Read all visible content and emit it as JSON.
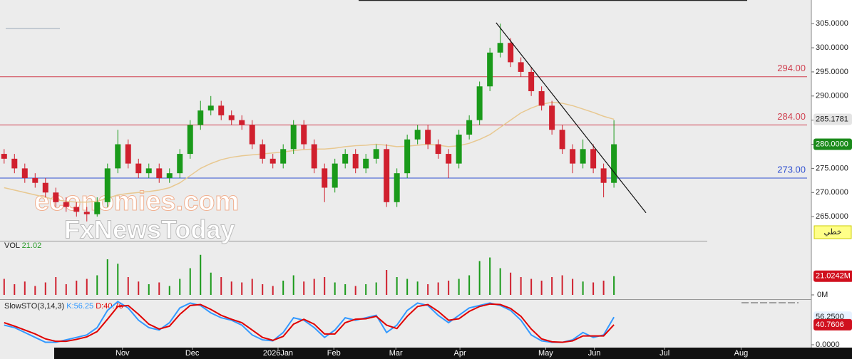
{
  "chart_data": {
    "type": "candlestick",
    "up_color": "#1a9a1a",
    "down_color": "#d0202e",
    "candles": [
      [
        278,
        279,
        276,
        277
      ],
      [
        277,
        278,
        274,
        275
      ],
      [
        275,
        276,
        272,
        273
      ],
      [
        273,
        274,
        271,
        272
      ],
      [
        272,
        273,
        269,
        270
      ],
      [
        270,
        271,
        267,
        268
      ],
      [
        268,
        269,
        266,
        267
      ],
      [
        267,
        268,
        265,
        266
      ],
      [
        266,
        267,
        264,
        265.5
      ],
      [
        265.5,
        269,
        265,
        268
      ],
      [
        268,
        276,
        267,
        275
      ],
      [
        275,
        283,
        274,
        280
      ],
      [
        280,
        281,
        275,
        276
      ],
      [
        276,
        277,
        273,
        274
      ],
      [
        274,
        276,
        273,
        275
      ],
      [
        275,
        276,
        272,
        273
      ],
      [
        273,
        275,
        272,
        274
      ],
      [
        274,
        279,
        273,
        278
      ],
      [
        278,
        285,
        277,
        284
      ],
      [
        284,
        289,
        283,
        287
      ],
      [
        287,
        290,
        286,
        288
      ],
      [
        288,
        289,
        285,
        286
      ],
      [
        286,
        287,
        284,
        285
      ],
      [
        285,
        286,
        283,
        284
      ],
      [
        284,
        285,
        279,
        280
      ],
      [
        280,
        281,
        276,
        277
      ],
      [
        277,
        278,
        275,
        276
      ],
      [
        276,
        280,
        275,
        279
      ],
      [
        279,
        285,
        278,
        284
      ],
      [
        284,
        285,
        279,
        280
      ],
      [
        280,
        281,
        274,
        275
      ],
      [
        275,
        276,
        268,
        271
      ],
      [
        271,
        277,
        270,
        276
      ],
      [
        276,
        279,
        275,
        278
      ],
      [
        278,
        279,
        274,
        275
      ],
      [
        275,
        278,
        274,
        277
      ],
      [
        277,
        280,
        276,
        279
      ],
      [
        279,
        280,
        267,
        268
      ],
      [
        268,
        275,
        267,
        274
      ],
      [
        274,
        282,
        273,
        281
      ],
      [
        281,
        284,
        280,
        283
      ],
      [
        283,
        284,
        279,
        280
      ],
      [
        280,
        281,
        277,
        278
      ],
      [
        278,
        279,
        273,
        276
      ],
      [
        276,
        283,
        275,
        282
      ],
      [
        282,
        286,
        281,
        285
      ],
      [
        285,
        293,
        284,
        292
      ],
      [
        292,
        300,
        291,
        299
      ],
      [
        299,
        305,
        298,
        301
      ],
      [
        301,
        302,
        296,
        297
      ],
      [
        297,
        298,
        294,
        295
      ],
      [
        295,
        296,
        290,
        291
      ],
      [
        291,
        292,
        287,
        288
      ],
      [
        288,
        289,
        282,
        283
      ],
      [
        283,
        284,
        278,
        279
      ],
      [
        279,
        280,
        274,
        276
      ],
      [
        276,
        281,
        275,
        279
      ],
      [
        279,
        280,
        274,
        275
      ],
      [
        275,
        276,
        269,
        272
      ],
      [
        272,
        285,
        271,
        280
      ]
    ],
    "ma": {
      "color": "#e8c890",
      "values": [
        271,
        270.5,
        270,
        269.5,
        269,
        268.5,
        268.2,
        268,
        268,
        268.2,
        268.8,
        269.5,
        269.8,
        270,
        270.2,
        270.5,
        271,
        272,
        273.5,
        275,
        276,
        276.8,
        277.3,
        277.6,
        277.8,
        278,
        278.2,
        278.4,
        278.7,
        278.9,
        279,
        279,
        279.2,
        279.5,
        279.7,
        279.8,
        280,
        279.8,
        279.5,
        279.6,
        279.8,
        280,
        279.8,
        279.5,
        279.7,
        280.2,
        281,
        282,
        283.5,
        285,
        286.5,
        287.5,
        288.3,
        288.7,
        288.5,
        288,
        287.3,
        286.6,
        285.8,
        285.1781
      ]
    },
    "levels": [
      {
        "value": 294,
        "label": "294.00",
        "color": "#d04050"
      },
      {
        "value": 284,
        "label": "284.00",
        "color": "#d04050"
      },
      {
        "value": 273,
        "label": "273.00",
        "color": "#3050d0"
      }
    ],
    "trendline": {
      "x": [
        47.6,
        62.1
      ],
      "y": [
        305.2,
        265.8
      ],
      "color": "#111111"
    },
    "xlim": [
      -0.4,
      78.1
    ],
    "ylim": [
      260,
      309.9
    ],
    "xticks": [
      {
        "value": 11.45,
        "label": "Nov"
      },
      {
        "value": 18.2,
        "label": "Dec"
      },
      {
        "value": 26.5,
        "label": "2026Jan"
      },
      {
        "value": 31.9,
        "label": "Feb"
      },
      {
        "value": 37.9,
        "label": "Mar"
      },
      {
        "value": 44.1,
        "label": "Apr"
      },
      {
        "value": 52.4,
        "label": "May"
      },
      {
        "value": 57.1,
        "label": "Jun"
      },
      {
        "value": 63.9,
        "label": "Jul"
      },
      {
        "value": 71.3,
        "label": "Aug"
      }
    ],
    "yticks": [
      {
        "value": 265,
        "label": "265.0000"
      },
      {
        "value": 270,
        "label": "270.0000"
      },
      {
        "value": 275,
        "label": "275.0000"
      },
      {
        "value": 280,
        "label": "280.0000"
      },
      {
        "value": 285,
        "label": "285.0000"
      },
      {
        "value": 290,
        "label": "290.0000"
      },
      {
        "value": 295,
        "label": "295.0000"
      },
      {
        "value": 300,
        "label": "300.0000"
      },
      {
        "value": 305,
        "label": "305.0000"
      }
    ],
    "last_price": {
      "value": 280,
      "label": "280.0000"
    },
    "ma_last": {
      "value": 285.1781,
      "label": "285.1781"
    },
    "chart_style_label": "خطي",
    "watermarks": [
      "economies.com",
      "FxNewsToday"
    ],
    "volume": {
      "title": "VOL",
      "title_value": 21.02,
      "values": [
        18,
        12,
        15,
        10,
        14,
        20,
        12,
        16,
        18,
        22,
        40,
        35,
        20,
        15,
        12,
        14,
        10,
        18,
        30,
        45,
        25,
        20,
        15,
        14,
        18,
        12,
        10,
        16,
        22,
        15,
        18,
        20,
        14,
        12,
        10,
        12,
        14,
        28,
        20,
        18,
        15,
        12,
        14,
        16,
        18,
        22,
        38,
        42,
        30,
        25,
        20,
        18,
        16,
        20,
        22,
        18,
        15,
        14,
        16,
        21.0242
      ],
      "ylim": [
        0,
        56
      ],
      "yticks": [
        {
          "value": 0,
          "label": "0M"
        }
      ],
      "last": {
        "value": 21.0242,
        "label": "21.0242M"
      }
    },
    "stochastic": {
      "title": "SlowSTO(3,14,3)",
      "k": {
        "name": "K:",
        "value": 56.25,
        "color": "#3399ff",
        "values": [
          40,
          35,
          25,
          15,
          5,
          5,
          10,
          15,
          20,
          35,
          70,
          88,
          75,
          50,
          35,
          30,
          45,
          75,
          85,
          80,
          65,
          55,
          50,
          40,
          20,
          10,
          8,
          25,
          55,
          50,
          35,
          15,
          30,
          55,
          50,
          55,
          60,
          25,
          40,
          70,
          85,
          80,
          60,
          45,
          60,
          75,
          80,
          85,
          80,
          70,
          50,
          20,
          8,
          5,
          5,
          10,
          25,
          15,
          20,
          56.25
        ]
      },
      "d": {
        "name": "D:",
        "value": 40.76,
        "color": "#e00000",
        "values": [
          45,
          38,
          30,
          22,
          12,
          7,
          7,
          11,
          16,
          27,
          52,
          78,
          80,
          62,
          42,
          32,
          38,
          62,
          80,
          82,
          72,
          60,
          52,
          45,
          30,
          15,
          9,
          17,
          42,
          52,
          42,
          22,
          22,
          45,
          52,
          53,
          58,
          40,
          33,
          58,
          78,
          82,
          68,
          50,
          53,
          68,
          78,
          83,
          82,
          74,
          58,
          32,
          12,
          6,
          5,
          8,
          18,
          18,
          18,
          40.76
        ]
      },
      "ylim": [
        0,
        90
      ],
      "yticks": [
        {
          "value": 0,
          "label": "0.0000"
        }
      ],
      "k_last": {
        "value": 56.25,
        "label": "56.2500"
      },
      "d_last": {
        "value": 40.76,
        "label": "40.7606"
      }
    }
  }
}
